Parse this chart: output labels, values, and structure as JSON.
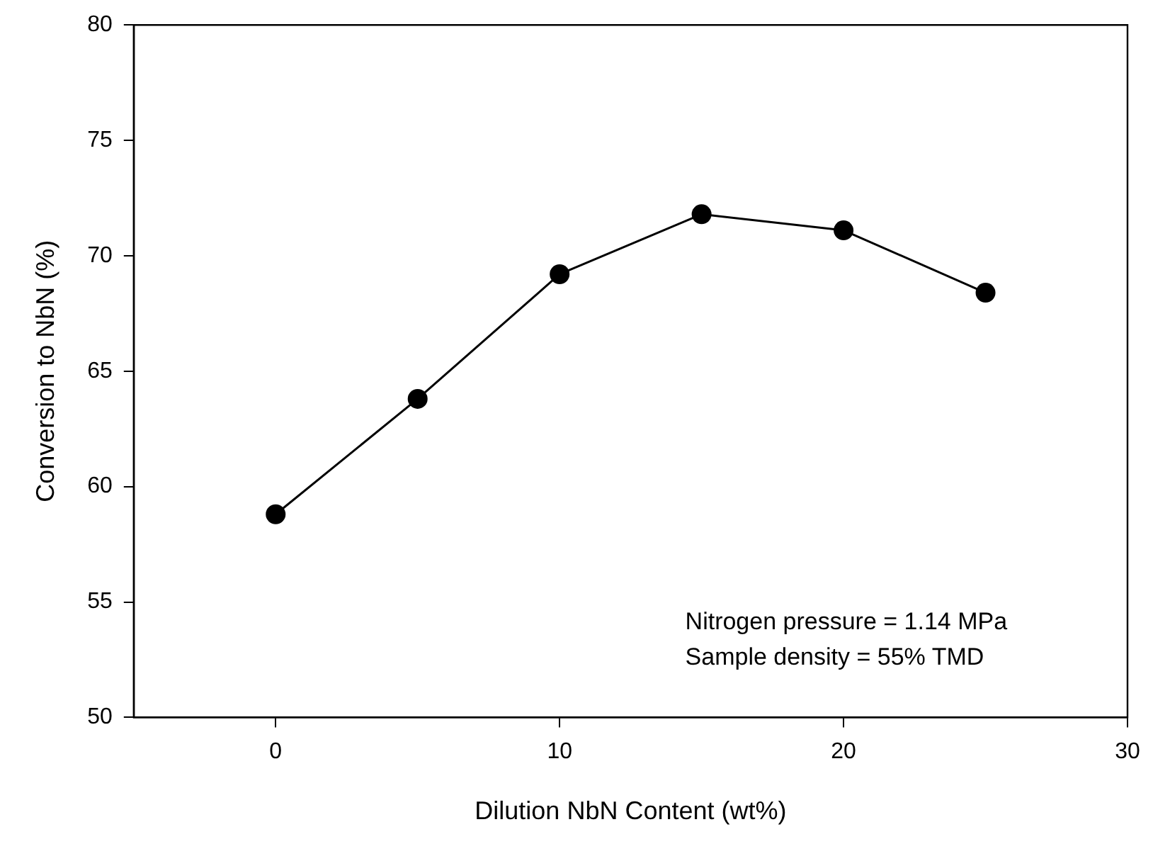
{
  "chart_data": {
    "type": "line",
    "xlabel": "Dilution NbN Content (wt%)",
    "ylabel": "Conversion to NbN (%)",
    "x": [
      0,
      5,
      10,
      15,
      20,
      25
    ],
    "series": [
      {
        "color": "#000000",
        "values": [
          58.8,
          63.8,
          69.2,
          71.8,
          71.1,
          68.4
        ]
      }
    ],
    "xlim": [
      -5,
      30
    ],
    "xticks": [
      0,
      10,
      20,
      30
    ],
    "ylim": [
      50,
      80
    ],
    "yticks": [
      50,
      55,
      60,
      65,
      70,
      75,
      80
    ],
    "grid": false,
    "legend": false,
    "marker": "circle",
    "line_style": "solid",
    "annotations": [
      "Nitrogen pressure = 1.14 MPa",
      "Sample density = 55% TMD"
    ]
  }
}
